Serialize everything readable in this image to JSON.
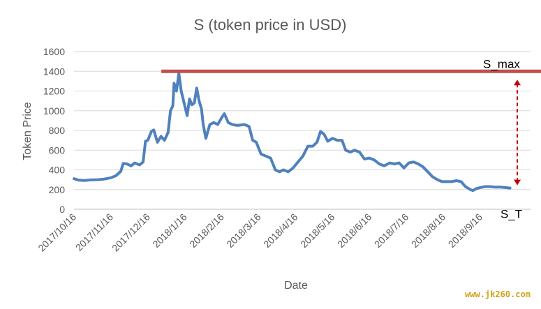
{
  "chart_data": {
    "type": "line",
    "title": "S (token price in USD)",
    "xlabel": "Date",
    "ylabel": "Token Price",
    "ylim": [
      0,
      1600
    ],
    "yticks": [
      "0",
      "200",
      "400",
      "600",
      "800",
      "1000",
      "1200",
      "1400",
      "1600"
    ],
    "xticks": [
      "2017/10/16",
      "2017/11/16",
      "2017/12/16",
      "2018/1/16",
      "2018/2/16",
      "2018/3/16",
      "2018/4/16",
      "2018/5/16",
      "2018/6/16",
      "2018/7/16",
      "2018/8/16",
      "2018/9/16"
    ],
    "grid": "horizontal",
    "series": [
      {
        "color": "#4f81bd",
        "points": [
          [
            "2017-10-16",
            310
          ],
          [
            "2017-10-20",
            295
          ],
          [
            "2017-10-25",
            292
          ],
          [
            "2017-10-30",
            298
          ],
          [
            "2017-11-05",
            300
          ],
          [
            "2017-11-10",
            305
          ],
          [
            "2017-11-16",
            320
          ],
          [
            "2017-11-20",
            340
          ],
          [
            "2017-11-24",
            385
          ],
          [
            "2017-11-26",
            465
          ],
          [
            "2017-11-29",
            460
          ],
          [
            "2017-12-02",
            440
          ],
          [
            "2017-12-05",
            470
          ],
          [
            "2017-12-09",
            450
          ],
          [
            "2017-12-12",
            480
          ],
          [
            "2017-12-14",
            690
          ],
          [
            "2017-12-16",
            700
          ],
          [
            "2017-12-19",
            790
          ],
          [
            "2017-12-21",
            805
          ],
          [
            "2017-12-24",
            680
          ],
          [
            "2017-12-27",
            740
          ],
          [
            "2017-12-30",
            700
          ],
          [
            "2018-01-02",
            780
          ],
          [
            "2018-01-04",
            1000
          ],
          [
            "2018-01-06",
            1050
          ],
          [
            "2018-01-07",
            1280
          ],
          [
            "2018-01-09",
            1200
          ],
          [
            "2018-01-11",
            1380
          ],
          [
            "2018-01-13",
            1200
          ],
          [
            "2018-01-15",
            1100
          ],
          [
            "2018-01-16",
            1050
          ],
          [
            "2018-01-18",
            950
          ],
          [
            "2018-01-20",
            1120
          ],
          [
            "2018-01-22",
            1060
          ],
          [
            "2018-01-24",
            1080
          ],
          [
            "2018-01-26",
            1230
          ],
          [
            "2018-01-28",
            1100
          ],
          [
            "2018-01-30",
            1020
          ],
          [
            "2018-02-02",
            860
          ],
          [
            "2018-02-04",
            720
          ],
          [
            "2018-02-07",
            860
          ],
          [
            "2018-02-10",
            880
          ],
          [
            "2018-02-13",
            860
          ],
          [
            "2018-02-16",
            930
          ],
          [
            "2018-02-18",
            970
          ],
          [
            "2018-02-21",
            880
          ],
          [
            "2018-02-24",
            860
          ],
          [
            "2018-02-28",
            850
          ],
          [
            "2018-03-04",
            860
          ],
          [
            "2018-03-08",
            840
          ],
          [
            "2018-03-11",
            700
          ],
          [
            "2018-03-14",
            680
          ],
          [
            "2018-03-18",
            560
          ],
          [
            "2018-03-22",
            540
          ],
          [
            "2018-03-26",
            520
          ],
          [
            "2018-03-30",
            400
          ],
          [
            "2018-04-03",
            380
          ],
          [
            "2018-04-06",
            400
          ],
          [
            "2018-04-10",
            380
          ],
          [
            "2018-04-14",
            420
          ],
          [
            "2018-04-18",
            480
          ],
          [
            "2018-04-22",
            540
          ],
          [
            "2018-04-26",
            640
          ],
          [
            "2018-04-30",
            640
          ],
          [
            "2018-05-03",
            680
          ],
          [
            "2018-05-06",
            790
          ],
          [
            "2018-05-09",
            760
          ],
          [
            "2018-05-12",
            690
          ],
          [
            "2018-05-16",
            720
          ],
          [
            "2018-05-20",
            700
          ],
          [
            "2018-05-24",
            700
          ],
          [
            "2018-05-27",
            600
          ],
          [
            "2018-05-31",
            580
          ],
          [
            "2018-06-04",
            600
          ],
          [
            "2018-06-08",
            580
          ],
          [
            "2018-06-12",
            510
          ],
          [
            "2018-06-16",
            520
          ],
          [
            "2018-06-20",
            500
          ],
          [
            "2018-06-24",
            460
          ],
          [
            "2018-06-28",
            440
          ],
          [
            "2018-07-02",
            470
          ],
          [
            "2018-07-06",
            460
          ],
          [
            "2018-07-10",
            470
          ],
          [
            "2018-07-14",
            420
          ],
          [
            "2018-07-18",
            470
          ],
          [
            "2018-07-22",
            480
          ],
          [
            "2018-07-26",
            460
          ],
          [
            "2018-07-30",
            430
          ],
          [
            "2018-08-03",
            380
          ],
          [
            "2018-08-07",
            330
          ],
          [
            "2018-08-11",
            300
          ],
          [
            "2018-08-15",
            280
          ],
          [
            "2018-08-19",
            280
          ],
          [
            "2018-08-23",
            280
          ],
          [
            "2018-08-27",
            290
          ],
          [
            "2018-08-31",
            280
          ],
          [
            "2018-09-04",
            230
          ],
          [
            "2018-09-08",
            200
          ],
          [
            "2018-09-10",
            190
          ],
          [
            "2018-09-13",
            210
          ],
          [
            "2018-09-16",
            220
          ],
          [
            "2018-09-20",
            230
          ],
          [
            "2018-09-24",
            230
          ],
          [
            "2018-09-28",
            225
          ],
          [
            "2018-10-02",
            225
          ],
          [
            "2018-10-06",
            220
          ],
          [
            "2018-10-10",
            215
          ]
        ]
      }
    ],
    "reference_line": {
      "label": "S_max",
      "value": 1400,
      "start": "2018-01-01",
      "color": "#c0504d"
    },
    "annotations": [
      {
        "label": "S_T",
        "value": 215,
        "date": "2018-10-10"
      }
    ],
    "range_arrow": {
      "from": 1400,
      "to": 215,
      "color": "#c00000"
    }
  },
  "watermark": "www.jk260.com"
}
